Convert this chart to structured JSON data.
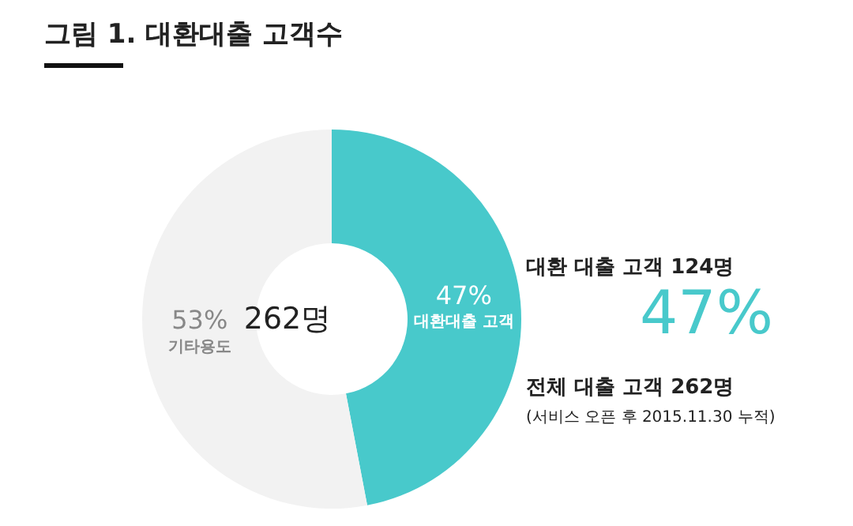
{
  "chart_data": {
    "type": "donut",
    "title": "그림 1. 대환대출 고객수",
    "categories": [
      "대환대출 고객",
      "기타용도"
    ],
    "values": [
      47,
      53
    ],
    "value_labels": [
      "47%",
      "53%"
    ],
    "colors": [
      "#48c9cb",
      "#f2f2f2"
    ],
    "legend": false,
    "annotations": [
      "262명",
      "대환 대출 고객  124명",
      "47%",
      "전체 대출 고객  262명",
      "(서비스 오픈 후 2015.11.30 누적)"
    ]
  }
}
